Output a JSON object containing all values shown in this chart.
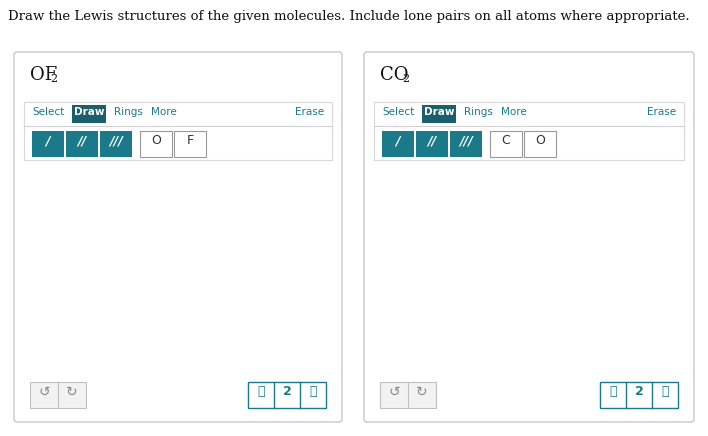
{
  "title_text": "Draw the Lewis structures of the given molecules. Include lone pairs on all atoms where appropriate.",
  "bg_color": "#ffffff",
  "teal_color": "#1a7a8a",
  "draw_btn_color": "#1b5e6e",
  "border_color": "#cccccc",
  "panel1_title_main": "OF",
  "panel1_title_sub": "2",
  "panel2_title_main": "CO",
  "panel2_title_sub": "2",
  "panel1_atoms": [
    "O",
    "F"
  ],
  "panel2_atoms": [
    "C",
    "O"
  ],
  "toolbar": [
    "Select",
    "Draw",
    "Rings",
    "More",
    "Erase"
  ],
  "bond_syms": [
    "∕",
    "∕∕",
    "∕∕∕"
  ],
  "fig_w": 7.08,
  "fig_h": 4.36,
  "dpi": 100
}
